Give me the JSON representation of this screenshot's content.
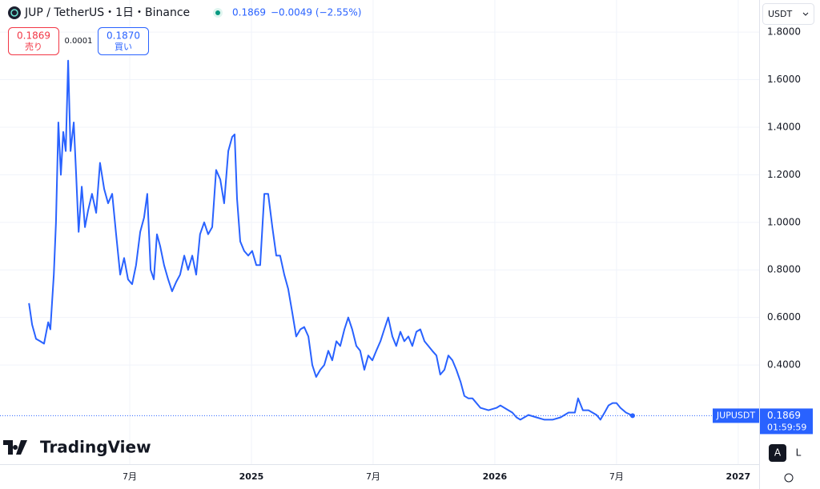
{
  "header": {
    "title": "JUP / TetherUS・1日・Binance",
    "change": "−0.0049 (−2.55%)",
    "sell_label": "売り",
    "buy_price": "0.1870",
    "buy_label": "買い",
    "spread": "0.0001",
    "currency": "USDT",
    "symbol": "JUPUSDT",
    "countdown": "01:59:59",
    "logo": "TradingView",
    "auto_button": "A",
    "log_button": "L"
  },
  "chart_data": {
    "type": "line",
    "color": "#2962ff",
    "x": [
      2024.086,
      2024.099,
      2024.115,
      2024.132,
      2024.148,
      2024.165,
      2024.174,
      2024.188,
      2024.197,
      2024.207,
      2024.217,
      2024.227,
      2024.237,
      2024.247,
      2024.257,
      2024.27,
      2024.28,
      2024.29,
      2024.303,
      2024.316,
      2024.329,
      2024.345,
      2024.362,
      2024.378,
      2024.395,
      2024.411,
      2024.428,
      2024.444,
      2024.461,
      2024.477,
      2024.493,
      2024.51,
      2024.526,
      2024.543,
      2024.559,
      2024.572,
      2024.586,
      2024.599,
      2024.612,
      2024.625,
      2024.641,
      2024.658,
      2024.674,
      2024.691,
      2024.707,
      2024.724,
      2024.74,
      2024.757,
      2024.773,
      2024.789,
      2024.806,
      2024.822,
      2024.839,
      2024.855,
      2024.872,
      2024.888,
      2024.905,
      2024.921,
      2024.931,
      2024.941,
      2024.954,
      2024.97,
      2024.987,
      2025.003,
      2025.02,
      2025.036,
      2025.053,
      2025.069,
      2025.086,
      2025.102,
      2025.118,
      2025.135,
      2025.151,
      2025.168,
      2025.184,
      2025.201,
      2025.217,
      2025.234,
      2025.25,
      2025.266,
      2025.283,
      2025.299,
      2025.316,
      2025.332,
      2025.349,
      2025.365,
      2025.382,
      2025.398,
      2025.414,
      2025.431,
      2025.447,
      2025.464,
      2025.48,
      2025.497,
      2025.513,
      2025.53,
      2025.546,
      2025.562,
      2025.579,
      2025.595,
      2025.612,
      2025.628,
      2025.645,
      2025.661,
      2025.678,
      2025.694,
      2025.711,
      2025.727,
      2025.743,
      2025.76,
      2025.776,
      2025.793,
      2025.809,
      2025.826,
      2025.842,
      2025.859,
      2025.875,
      2025.891,
      2025.908,
      2025.941,
      2025.974,
      2026.007,
      2026.023,
      2026.056,
      2026.072,
      2026.089,
      2026.105,
      2026.138,
      2026.171,
      2026.204,
      2026.237,
      2026.27,
      2026.303,
      2026.329,
      2026.342,
      2026.362,
      2026.385,
      2026.418,
      2026.434,
      2026.451,
      2026.467,
      2026.484,
      2026.5,
      2026.516,
      2026.539,
      2026.566
    ],
    "values": [
      0.66,
      0.57,
      0.51,
      0.5,
      0.49,
      0.58,
      0.55,
      0.78,
      1.0,
      1.42,
      1.2,
      1.38,
      1.3,
      1.68,
      1.3,
      1.42,
      1.2,
      0.96,
      1.15,
      0.98,
      1.05,
      1.12,
      1.04,
      1.25,
      1.14,
      1.08,
      1.12,
      0.95,
      0.78,
      0.85,
      0.76,
      0.74,
      0.82,
      0.96,
      1.02,
      1.12,
      0.8,
      0.76,
      0.95,
      0.9,
      0.82,
      0.76,
      0.71,
      0.75,
      0.78,
      0.86,
      0.8,
      0.86,
      0.78,
      0.95,
      1.0,
      0.95,
      0.98,
      1.22,
      1.18,
      1.08,
      1.3,
      1.36,
      1.37,
      1.1,
      0.92,
      0.88,
      0.86,
      0.88,
      0.82,
      0.82,
      1.12,
      1.12,
      0.98,
      0.86,
      0.86,
      0.78,
      0.72,
      0.62,
      0.52,
      0.55,
      0.56,
      0.52,
      0.4,
      0.35,
      0.38,
      0.4,
      0.46,
      0.42,
      0.5,
      0.48,
      0.55,
      0.6,
      0.55,
      0.48,
      0.46,
      0.38,
      0.44,
      0.42,
      0.46,
      0.5,
      0.55,
      0.6,
      0.52,
      0.48,
      0.54,
      0.5,
      0.52,
      0.48,
      0.54,
      0.55,
      0.5,
      0.48,
      0.46,
      0.44,
      0.36,
      0.38,
      0.44,
      0.42,
      0.38,
      0.33,
      0.27,
      0.26,
      0.26,
      0.22,
      0.21,
      0.22,
      0.23,
      0.21,
      0.2,
      0.18,
      0.17,
      0.19,
      0.18,
      0.17,
      0.17,
      0.18,
      0.2,
      0.2,
      0.26,
      0.21,
      0.21,
      0.19,
      0.17,
      0.2,
      0.23,
      0.24,
      0.24,
      0.22,
      0.2,
      0.1869
    ],
    "xlim": [
      2023.967,
      2027.086
    ],
    "ylim": [
      -0.017,
      1.935
    ],
    "xticks": [
      {
        "value": 2024.5,
        "label": "7月"
      },
      2025,
      {
        "value": 2025.5,
        "label": "7月"
      },
      2026,
      {
        "value": 2026.5,
        "label": "7月"
      },
      2027
    ],
    "yticks": [
      {
        "value": 0.4,
        "label": "0.4000"
      },
      {
        "value": 0.6,
        "label": "0.6000"
      },
      {
        "value": 0.8,
        "label": "0.8000"
      },
      {
        "value": 1.0,
        "label": "1.0000"
      },
      {
        "value": 1.2,
        "label": "1.2000"
      },
      {
        "value": 1.4,
        "label": "1.4000"
      },
      {
        "value": 1.6,
        "label": "1.6000"
      },
      {
        "value": 1.8,
        "label": "1.8000"
      }
    ],
    "grid": true
  }
}
